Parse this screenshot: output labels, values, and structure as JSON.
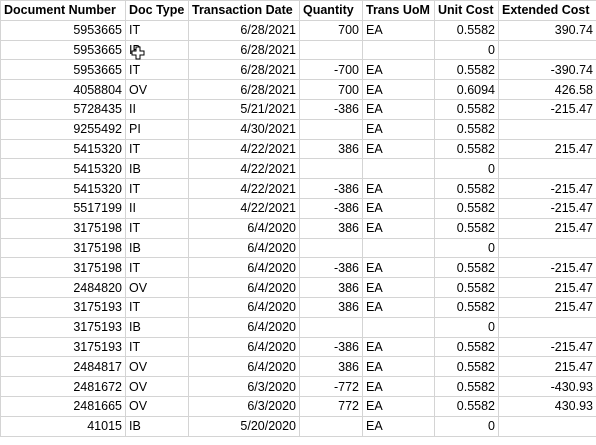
{
  "sheet": {
    "headers": [
      "Document Number",
      "Doc Type",
      "Transaction Date",
      "Quantity",
      "Trans UoM",
      "Unit Cost",
      "Extended Cost"
    ],
    "rows": [
      [
        "5953665",
        "IT",
        "6/28/2021",
        "700",
        "EA",
        "0.5582",
        "390.74"
      ],
      [
        "5953665",
        "IB",
        "6/28/2021",
        "",
        "",
        "0",
        ""
      ],
      [
        "5953665",
        "IT",
        "6/28/2021",
        "-700",
        "EA",
        "0.5582",
        "-390.74"
      ],
      [
        "4058804",
        "OV",
        "6/28/2021",
        "700",
        "EA",
        "0.6094",
        "426.58"
      ],
      [
        "5728435",
        "II",
        "5/21/2021",
        "-386",
        "EA",
        "0.5582",
        "-215.47"
      ],
      [
        "9255492",
        "PI",
        "4/30/2021",
        "",
        "EA",
        "0.5582",
        ""
      ],
      [
        "5415320",
        "IT",
        "4/22/2021",
        "386",
        "EA",
        "0.5582",
        "215.47"
      ],
      [
        "5415320",
        "IB",
        "4/22/2021",
        "",
        "",
        "0",
        ""
      ],
      [
        "5415320",
        "IT",
        "4/22/2021",
        "-386",
        "EA",
        "0.5582",
        "-215.47"
      ],
      [
        "5517199",
        "II",
        "4/22/2021",
        "-386",
        "EA",
        "0.5582",
        "-215.47"
      ],
      [
        "3175198",
        "IT",
        "6/4/2020",
        "386",
        "EA",
        "0.5582",
        "215.47"
      ],
      [
        "3175198",
        "IB",
        "6/4/2020",
        "",
        "",
        "0",
        ""
      ],
      [
        "3175198",
        "IT",
        "6/4/2020",
        "-386",
        "EA",
        "0.5582",
        "-215.47"
      ],
      [
        "2484820",
        "OV",
        "6/4/2020",
        "386",
        "EA",
        "0.5582",
        "215.47"
      ],
      [
        "3175193",
        "IT",
        "6/4/2020",
        "386",
        "EA",
        "0.5582",
        "215.47"
      ],
      [
        "3175193",
        "IB",
        "6/4/2020",
        "",
        "",
        "0",
        ""
      ],
      [
        "3175193",
        "IT",
        "6/4/2020",
        "-386",
        "EA",
        "0.5582",
        "-215.47"
      ],
      [
        "2484817",
        "OV",
        "6/4/2020",
        "386",
        "EA",
        "0.5582",
        "215.47"
      ],
      [
        "2481672",
        "OV",
        "6/3/2020",
        "-772",
        "EA",
        "0.5582",
        "-430.93"
      ],
      [
        "2481665",
        "OV",
        "6/3/2020",
        "772",
        "EA",
        "0.5582",
        "430.93"
      ],
      [
        "41015",
        "IB",
        "5/20/2020",
        "",
        "EA",
        "0",
        ""
      ]
    ]
  },
  "cursor": {
    "icon": "excel-cross-cursor-icon"
  }
}
